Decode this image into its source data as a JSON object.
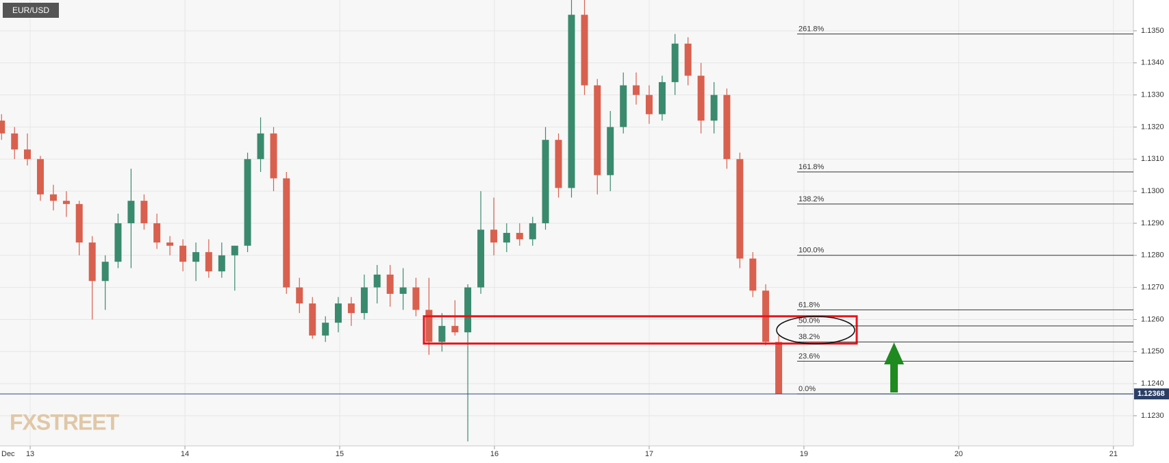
{
  "chart_data": {
    "type": "candlestick",
    "symbol": "EUR/USD",
    "watermark": "FXSTREET",
    "month_label": "Dec",
    "xlim": [
      -0.195,
      7.129
    ],
    "ylim": [
      1.12206,
      1.13596
    ],
    "xticks": [
      {
        "value": 0,
        "label": "13"
      },
      {
        "value": 1,
        "label": "14"
      },
      {
        "value": 2,
        "label": "15"
      },
      {
        "value": 3,
        "label": "16"
      },
      {
        "value": 4,
        "label": "17"
      },
      {
        "value": 5,
        "label": "19"
      },
      {
        "value": 6,
        "label": "20"
      },
      {
        "value": 7,
        "label": "21"
      }
    ],
    "yticks": [
      {
        "value": 1.123,
        "label": "1.1230"
      },
      {
        "value": 1.124,
        "label": "1.1240"
      },
      {
        "value": 1.125,
        "label": "1.1250"
      },
      {
        "value": 1.126,
        "label": "1.1260"
      },
      {
        "value": 1.127,
        "label": "1.1270"
      },
      {
        "value": 1.128,
        "label": "1.1280"
      },
      {
        "value": 1.129,
        "label": "1.1290"
      },
      {
        "value": 1.13,
        "label": "1.1300"
      },
      {
        "value": 1.131,
        "label": "1.1310"
      },
      {
        "value": 1.132,
        "label": "1.1320"
      },
      {
        "value": 1.133,
        "label": "1.1330"
      },
      {
        "value": 1.134,
        "label": "1.1340"
      },
      {
        "value": 1.135,
        "label": "1.1350"
      }
    ],
    "grid": true,
    "up_color": "#3a8a6e",
    "down_color": "#d9604e",
    "x": [
      -0.185,
      -0.101,
      -0.018,
      0.066,
      0.15,
      0.234,
      0.317,
      0.401,
      0.485,
      0.568,
      0.652,
      0.736,
      0.819,
      0.903,
      0.987,
      1.071,
      1.154,
      1.238,
      1.322,
      1.405,
      1.489,
      1.573,
      1.656,
      1.74,
      1.824,
      1.908,
      1.991,
      2.075,
      2.159,
      2.242,
      2.326,
      2.41,
      2.493,
      2.577,
      2.661,
      2.745,
      2.828,
      2.912,
      2.996,
      3.079,
      3.163,
      3.247,
      3.33,
      3.414,
      3.498,
      3.582,
      3.665,
      3.749,
      3.833,
      3.916,
      4.0,
      4.084,
      4.167,
      4.251,
      4.335,
      4.419,
      4.502,
      4.586,
      4.67,
      4.753,
      4.837
    ],
    "open": [
      1.1322,
      1.1318,
      1.1313,
      1.131,
      1.1299,
      1.1297,
      1.1296,
      1.1284,
      1.1272,
      1.1278,
      1.129,
      1.1297,
      1.129,
      1.1284,
      1.1283,
      1.1278,
      1.1281,
      1.1275,
      1.128,
      1.1283,
      1.131,
      1.1318,
      1.1304,
      1.127,
      1.1265,
      1.1255,
      1.1259,
      1.1265,
      1.1262,
      1.127,
      1.1274,
      1.1268,
      1.127,
      1.1263,
      1.1253,
      1.1258,
      1.1256,
      1.127,
      1.1288,
      1.1284,
      1.1287,
      1.1285,
      1.129,
      1.1316,
      1.1301,
      1.1355,
      1.1333,
      1.1305,
      1.132,
      1.1333,
      1.133,
      1.1324,
      1.1334,
      1.1346,
      1.1336,
      1.1322,
      1.133,
      1.131,
      1.1279,
      1.1269,
      1.1253
    ],
    "high": [
      1.1324,
      1.132,
      1.1318,
      1.1311,
      1.1302,
      1.13,
      1.1297,
      1.1286,
      1.128,
      1.1293,
      1.1307,
      1.1299,
      1.1293,
      1.1286,
      1.1285,
      1.1284,
      1.1285,
      1.1284,
      1.1283,
      1.1312,
      1.1323,
      1.132,
      1.1306,
      1.1273,
      1.1267,
      1.1261,
      1.1267,
      1.1267,
      1.1274,
      1.1277,
      1.1277,
      1.1276,
      1.1273,
      1.1273,
      1.1262,
      1.1266,
      1.1271,
      1.13,
      1.1298,
      1.129,
      1.129,
      1.1292,
      1.132,
      1.1318,
      1.136,
      1.136,
      1.1335,
      1.1325,
      1.1337,
      1.1337,
      1.1333,
      1.1336,
      1.1349,
      1.1348,
      1.134,
      1.1334,
      1.1332,
      1.1312,
      1.1281,
      1.1271,
      1.1255
    ],
    "low": [
      1.1316,
      1.131,
      1.1308,
      1.1297,
      1.1294,
      1.1292,
      1.128,
      1.126,
      1.1263,
      1.1276,
      1.1276,
      1.1288,
      1.1282,
      1.128,
      1.1275,
      1.1272,
      1.1273,
      1.1273,
      1.1269,
      1.1281,
      1.1306,
      1.13,
      1.1268,
      1.1262,
      1.1254,
      1.1253,
      1.1256,
      1.1258,
      1.126,
      1.1265,
      1.1264,
      1.1263,
      1.1261,
      1.1249,
      1.125,
      1.1255,
      1.1222,
      1.1268,
      1.128,
      1.1281,
      1.1283,
      1.1283,
      1.1288,
      1.1298,
      1.1298,
      1.133,
      1.1299,
      1.13,
      1.1318,
      1.1327,
      1.1321,
      1.1322,
      1.133,
      1.1333,
      1.1318,
      1.1318,
      1.1307,
      1.1276,
      1.1267,
      1.1252,
      1.12368
    ],
    "close": [
      1.1318,
      1.1313,
      1.131,
      1.1299,
      1.1297,
      1.1296,
      1.1284,
      1.1272,
      1.1278,
      1.129,
      1.1297,
      1.129,
      1.1284,
      1.1283,
      1.1278,
      1.1281,
      1.1275,
      1.128,
      1.1283,
      1.131,
      1.1318,
      1.1304,
      1.127,
      1.1265,
      1.1255,
      1.1259,
      1.1265,
      1.1262,
      1.127,
      1.1274,
      1.1268,
      1.127,
      1.1263,
      1.1253,
      1.1258,
      1.1256,
      1.127,
      1.1288,
      1.1284,
      1.1287,
      1.1285,
      1.129,
      1.1316,
      1.1301,
      1.1355,
      1.1333,
      1.1305,
      1.132,
      1.1333,
      1.133,
      1.1324,
      1.1334,
      1.1346,
      1.1336,
      1.1322,
      1.133,
      1.131,
      1.1279,
      1.1269,
      1.1253,
      1.12368
    ],
    "fib_levels": [
      {
        "label": "261.8%",
        "value": 1.1349
      },
      {
        "label": "161.8%",
        "value": 1.1306
      },
      {
        "label": "138.2%",
        "value": 1.1296
      },
      {
        "label": "100.0%",
        "value": 1.128
      },
      {
        "label": "61.8%",
        "value": 1.1263
      },
      {
        "label": "50.0%",
        "value": 1.1258
      },
      {
        "label": "38.2%",
        "value": 1.1253
      },
      {
        "label": "23.6%",
        "value": 1.1247
      },
      {
        "label": "0.0%",
        "value": 1.12368
      }
    ],
    "highlight_range": [
      1.12525,
      1.1261
    ],
    "current_price": 1.12368
  }
}
